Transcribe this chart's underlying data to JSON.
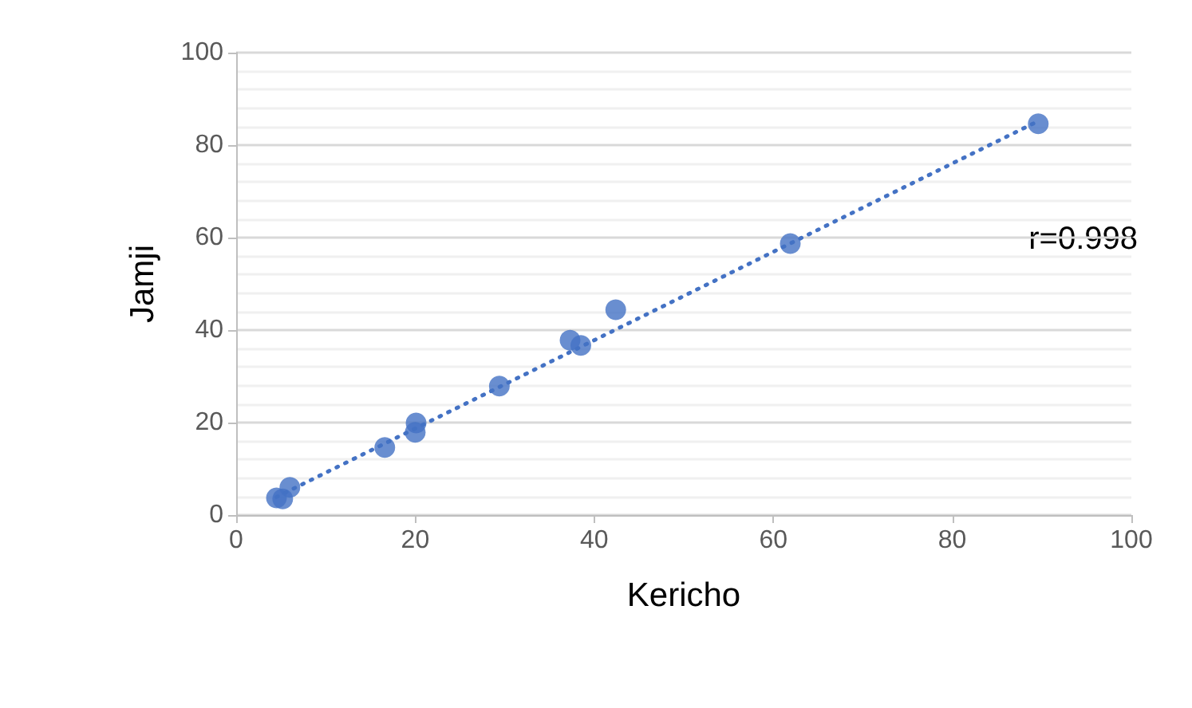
{
  "chart_data": {
    "type": "scatter",
    "xlabel": "Kericho",
    "ylabel": "Jamji",
    "xlim": [
      0,
      100
    ],
    "ylim": [
      0,
      100
    ],
    "xticks": [
      0,
      20,
      40,
      60,
      80,
      100
    ],
    "yticks": [
      0,
      20,
      40,
      60,
      80,
      100
    ],
    "grid": "y",
    "marker": "circle",
    "annotations": [
      "r=0.998"
    ],
    "series": [
      {
        "color": "#4472c4",
        "x": [
          4.5,
          5.2,
          6.0,
          16.6,
          20.0,
          20.1,
          29.4,
          37.3,
          38.5,
          42.4,
          61.9,
          89.6
        ],
        "values": [
          3.7,
          3.5,
          6.0,
          14.6,
          17.9,
          19.9,
          27.9,
          37.8,
          36.7,
          44.4,
          58.7,
          84.6
        ]
      },
      {
        "type": "line",
        "color": "#4472c4",
        "line_style": "dotted",
        "marker": "none",
        "x": [
          4.5,
          89.6
        ],
        "values": [
          3.9,
          85.2
        ]
      }
    ]
  }
}
